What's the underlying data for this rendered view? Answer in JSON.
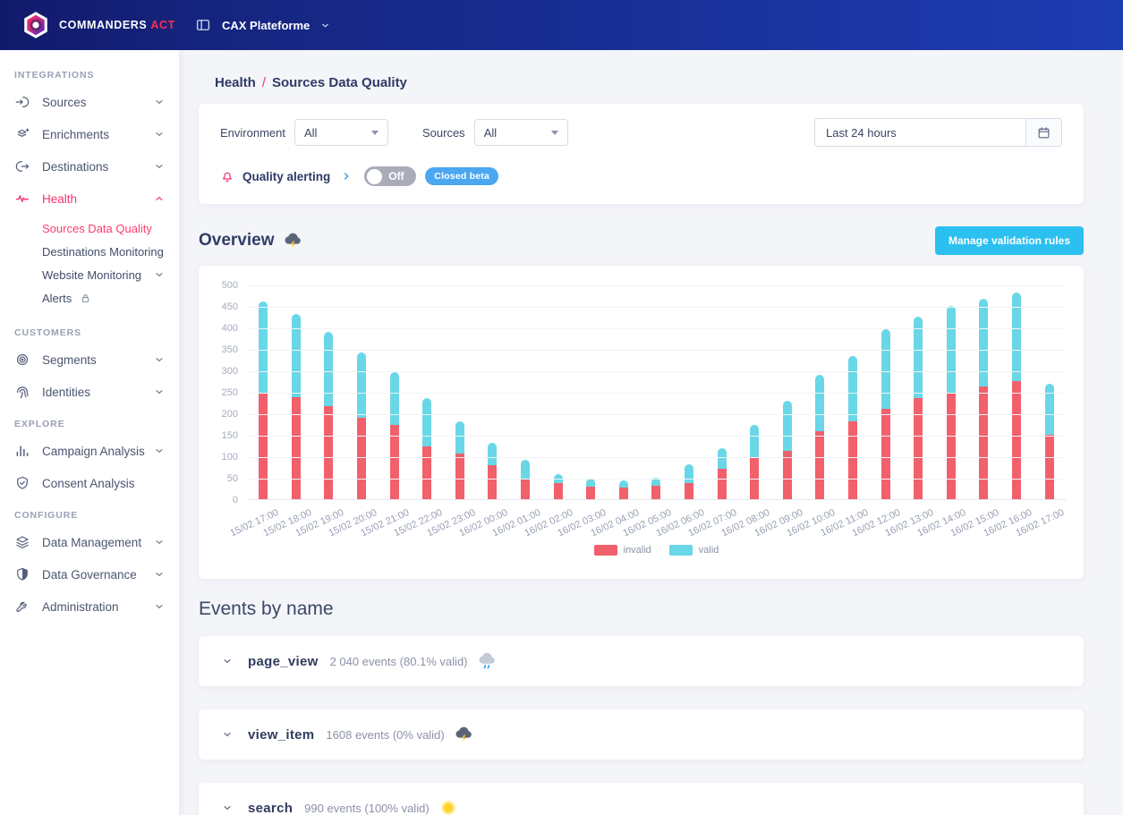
{
  "navbar": {
    "brand": "COMMANDERS",
    "brand_accent": "ACT",
    "workspace": "CAX Plateforme"
  },
  "sidebar": {
    "sections": [
      {
        "label": "INTEGRATIONS",
        "items": [
          {
            "name": "sources",
            "label": "Sources",
            "icon": "source-in",
            "chevron": "down"
          },
          {
            "name": "enrichments",
            "label": "Enrichments",
            "icon": "enrichments",
            "chevron": "down"
          },
          {
            "name": "destinations",
            "label": "Destinations",
            "icon": "destination-out",
            "chevron": "down"
          },
          {
            "name": "health",
            "label": "Health",
            "icon": "pulse",
            "chevron": "up",
            "active": true,
            "children": [
              {
                "name": "sources-data-quality",
                "label": "Sources Data Quality",
                "active": true
              },
              {
                "name": "destinations-monitoring",
                "label": "Destinations Monitoring"
              },
              {
                "name": "website-monitoring",
                "label": "Website Monitoring",
                "chevron": "down"
              },
              {
                "name": "alerts",
                "label": "Alerts",
                "lock": true
              }
            ]
          }
        ]
      },
      {
        "label": "CUSTOMERS",
        "items": [
          {
            "name": "segments",
            "label": "Segments",
            "icon": "target",
            "chevron": "down"
          },
          {
            "name": "identities",
            "label": "Identities",
            "icon": "fingerprint",
            "chevron": "down"
          }
        ]
      },
      {
        "label": "EXPLORE",
        "items": [
          {
            "name": "campaign-analysis",
            "label": "Campaign Analysis",
            "icon": "bar-chart",
            "chevron": "down"
          },
          {
            "name": "consent-analysis",
            "label": "Consent Analysis",
            "icon": "shield-check"
          }
        ]
      },
      {
        "label": "CONFIGURE",
        "items": [
          {
            "name": "data-management",
            "label": "Data Management",
            "icon": "layers",
            "chevron": "down"
          },
          {
            "name": "data-governance",
            "label": "Data Governance",
            "icon": "shield-half",
            "chevron": "down"
          },
          {
            "name": "administration",
            "label": "Administration",
            "icon": "wrench",
            "chevron": "down"
          }
        ]
      }
    ]
  },
  "breadcrumb": {
    "parent": "Health",
    "separator": "/",
    "current": "Sources Data Quality"
  },
  "filters": {
    "environment_label": "Environment",
    "environment_value": "All",
    "sources_label": "Sources",
    "sources_value": "All",
    "date_range_value": "Last 24 hours",
    "quality_alerting_label": "Quality alerting",
    "toggle_label": "Off",
    "beta_badge": "Closed beta"
  },
  "overview": {
    "title": "Overview",
    "weather": "storm",
    "manage_button": "Manage validation rules"
  },
  "chart_data": {
    "type": "bar",
    "stacked": true,
    "title": "",
    "xlabel": "",
    "ylabel": "",
    "ylim": [
      0,
      500
    ],
    "ytick_step": 50,
    "grid": "horizontal",
    "legend_position": "bottom",
    "categories": [
      "15/02 17:00",
      "15/02 18:00",
      "15/02 19:00",
      "15/02 20:00",
      "15/02 21:00",
      "15/02 22:00",
      "15/02 23:00",
      "16/02 00:00",
      "16/02 01:00",
      "16/02 02:00",
      "16/02 03:00",
      "16/02 04:00",
      "16/02 05:00",
      "16/02 06:00",
      "16/02 07:00",
      "16/02 08:00",
      "16/02 09:00",
      "16/02 10:00",
      "16/02 11:00",
      "16/02 12:00",
      "16/02 13:00",
      "16/02 14:00",
      "16/02 15:00",
      "16/02 16:00",
      "16/02 17:00"
    ],
    "series": [
      {
        "name": "invalid",
        "color": "#f1606b",
        "values": [
          247,
          237,
          217,
          190,
          173,
          122,
          106,
          80,
          46,
          38,
          30,
          27,
          31,
          38,
          70,
          98,
          113,
          159,
          181,
          210,
          235,
          249,
          262,
          276,
          151
        ]
      },
      {
        "name": "valid",
        "color": "#69d7e6",
        "values": [
          213,
          195,
          173,
          152,
          124,
          113,
          75,
          51,
          45,
          21,
          17,
          16,
          20,
          43,
          48,
          76,
          117,
          130,
          153,
          185,
          191,
          201,
          204,
          205,
          117
        ]
      }
    ]
  },
  "events_section": {
    "title": "Events by name",
    "rows": [
      {
        "name": "page_view",
        "summary": "2 040 events (80.1% valid)",
        "weather": "rain"
      },
      {
        "name": "view_item",
        "summary": "1608 events (0% valid)",
        "weather": "storm"
      },
      {
        "name": "search",
        "summary": "990 events (100% valid)",
        "weather": "sun"
      }
    ]
  },
  "colors": {
    "navbar_gradient_start": "#121a6b",
    "navbar_gradient_end": "#1e3cb3",
    "accent_pink": "#f4356b",
    "cyan_button": "#2cc0f0",
    "badge_blue": "#4ba7f0",
    "bar_invalid": "#f1606b",
    "bar_valid": "#69d7e6",
    "text_navy": "#2e3a67",
    "background": "#f4f5f9"
  }
}
